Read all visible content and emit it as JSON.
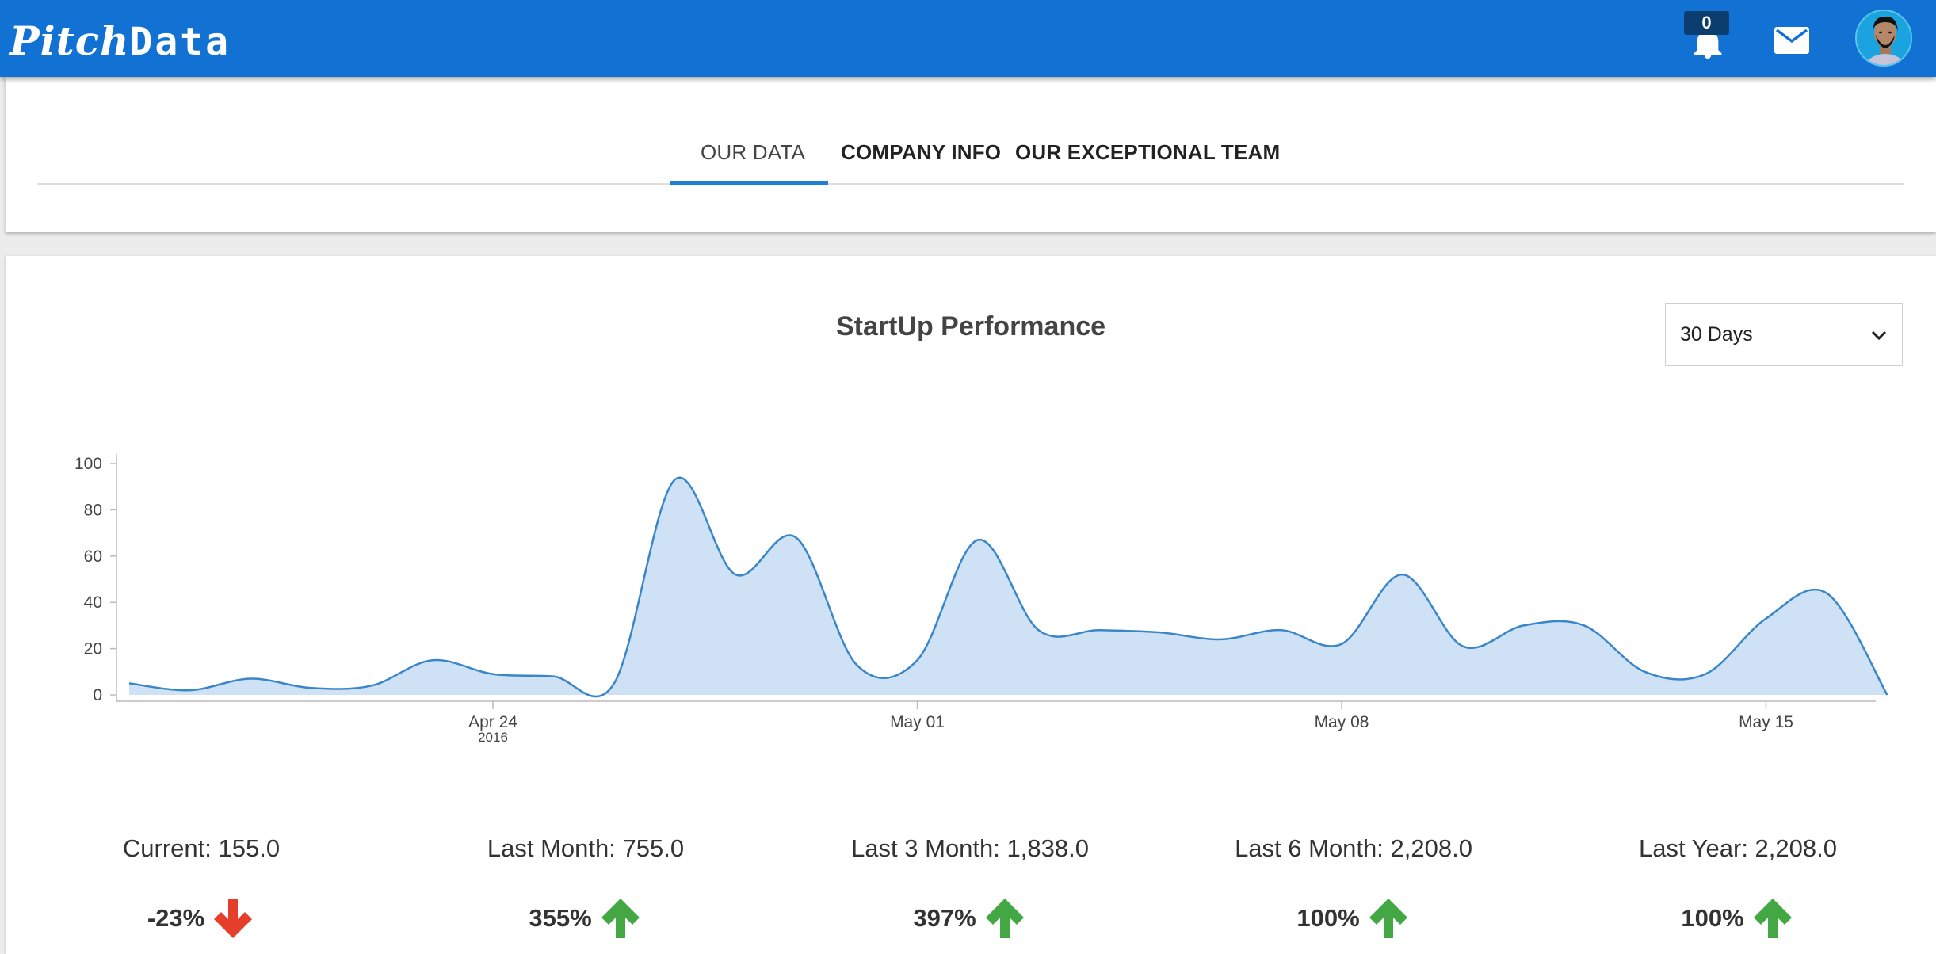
{
  "header": {
    "logo_part1": "Pitch",
    "logo_part2": "Data",
    "notification_count": "0",
    "bar_color": "#1172d3"
  },
  "tabs": [
    {
      "label": "OUR DATA",
      "active": true
    },
    {
      "label": "COMPANY INFO",
      "active": false
    },
    {
      "label": "OUR EXCEPTIONAL TEAM",
      "active": false
    }
  ],
  "main": {
    "title": "StartUp Performance",
    "period_select": {
      "value": "30 Days",
      "options": [
        "30 Days"
      ]
    }
  },
  "chart_data": {
    "type": "area",
    "title": "StartUp Performance",
    "xlabel": "",
    "ylabel": "",
    "ylim": [
      0,
      100
    ],
    "yticks": [
      0,
      20,
      40,
      60,
      80,
      100
    ],
    "x_tick_labels": [
      {
        "date": "2016-04-24",
        "label": "Apr 24",
        "sublabel": "2016"
      },
      {
        "date": "2016-05-01",
        "label": "May 01",
        "sublabel": ""
      },
      {
        "date": "2016-05-08",
        "label": "May 08",
        "sublabel": ""
      },
      {
        "date": "2016-05-15",
        "label": "May 15",
        "sublabel": ""
      }
    ],
    "series": [
      {
        "color": "#3a86c8",
        "fill": "#cfe2f5",
        "x": [
          "2016-04-18",
          "2016-04-19",
          "2016-04-20",
          "2016-04-21",
          "2016-04-22",
          "2016-04-23",
          "2016-04-24",
          "2016-04-25",
          "2016-04-26",
          "2016-04-27",
          "2016-04-28",
          "2016-04-29",
          "2016-04-30",
          "2016-05-01",
          "2016-05-02",
          "2016-05-03",
          "2016-05-04",
          "2016-05-05",
          "2016-05-06",
          "2016-05-07",
          "2016-05-08",
          "2016-05-09",
          "2016-05-10",
          "2016-05-11",
          "2016-05-12",
          "2016-05-13",
          "2016-05-14",
          "2016-05-15",
          "2016-05-16",
          "2016-05-17"
        ],
        "values": [
          5,
          2,
          7,
          3,
          4,
          15,
          9,
          8,
          5,
          93,
          52,
          68,
          13,
          15,
          67,
          28,
          28,
          27,
          24,
          28,
          22,
          52,
          21,
          30,
          30,
          10,
          9,
          33,
          44,
          0
        ]
      }
    ],
    "grid": false,
    "legend": "none"
  },
  "stats": [
    {
      "label": "Current: 155.0",
      "change": "-23%",
      "direction": "down",
      "color": "#e53f2b"
    },
    {
      "label": "Last Month: 755.0",
      "change": "355%",
      "direction": "up",
      "color": "#43a843"
    },
    {
      "label": "Last 3 Month: 1,838.0",
      "change": "397%",
      "direction": "up",
      "color": "#43a843"
    },
    {
      "label": "Last 6 Month: 2,208.0",
      "change": "100%",
      "direction": "up",
      "color": "#43a843"
    },
    {
      "label": "Last Year: 2,208.0",
      "change": "100%",
      "direction": "up",
      "color": "#43a843"
    }
  ]
}
